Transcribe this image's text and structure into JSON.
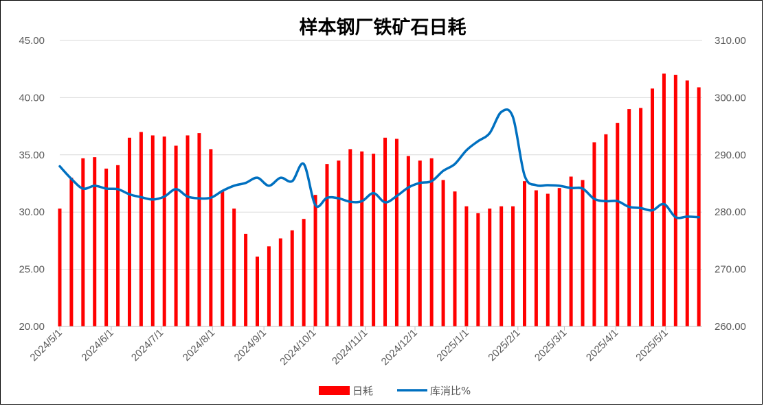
{
  "chart_data": {
    "type": "bar+line",
    "title": "样本钢厂铁矿石日耗",
    "y_left": {
      "ylim": [
        20,
        45
      ],
      "ticks": [
        "45.00",
        "40.00",
        "35.00",
        "30.00",
        "25.00",
        "20.00"
      ]
    },
    "y_right": {
      "ylim": [
        260,
        310
      ],
      "ticks": [
        "310.00",
        "300.00",
        "290.00",
        "280.00",
        "270.00",
        "260.00"
      ]
    },
    "x_axis": {
      "start": "2024-05-01",
      "end": "2025-05-23",
      "ticks": [
        {
          "date": "2024-05-01",
          "label": "2024/5/1"
        },
        {
          "date": "2024-06-01",
          "label": "2024/6/1"
        },
        {
          "date": "2024-07-01",
          "label": "2024/7/1"
        },
        {
          "date": "2024-08-01",
          "label": "2024/8/1"
        },
        {
          "date": "2024-09-01",
          "label": "2024/9/1"
        },
        {
          "date": "2024-10-01",
          "label": "2024/10/1"
        },
        {
          "date": "2024-11-01",
          "label": "2024/11/1"
        },
        {
          "date": "2024-12-01",
          "label": "2024/12/1"
        },
        {
          "date": "2025-01-01",
          "label": "2025/1/1"
        },
        {
          "date": "2025-02-01",
          "label": "2025/2/1"
        },
        {
          "date": "2025-03-01",
          "label": "2025/3/1"
        },
        {
          "date": "2025-04-01",
          "label": "2025/4/1"
        },
        {
          "date": "2025-05-01",
          "label": "2025/5/1"
        }
      ]
    },
    "legend": {
      "position": "bottom",
      "items": [
        "日耗",
        "库消比%"
      ]
    },
    "grid": true,
    "series": [
      {
        "name": "日耗",
        "kind": "bar",
        "axis": "left",
        "color": "#FF0000",
        "x": [
          "2024-05-01",
          "2024-05-08",
          "2024-05-15",
          "2024-05-22",
          "2024-05-29",
          "2024-06-05",
          "2024-06-12",
          "2024-06-19",
          "2024-06-26",
          "2024-07-03",
          "2024-07-10",
          "2024-07-17",
          "2024-07-24",
          "2024-07-31",
          "2024-08-07",
          "2024-08-14",
          "2024-08-21",
          "2024-08-28",
          "2024-09-04",
          "2024-09-11",
          "2024-09-18",
          "2024-09-25",
          "2024-10-02",
          "2024-10-09",
          "2024-10-16",
          "2024-10-23",
          "2024-10-30",
          "2024-11-06",
          "2024-11-13",
          "2024-11-20",
          "2024-11-27",
          "2024-12-04",
          "2024-12-11",
          "2024-12-18",
          "2024-12-25",
          "2025-01-01",
          "2025-01-08",
          "2025-01-15",
          "2025-01-22",
          "2025-01-29",
          "2025-02-05",
          "2025-02-12",
          "2025-02-19",
          "2025-02-26",
          "2025-03-05",
          "2025-03-12",
          "2025-03-19",
          "2025-03-26",
          "2025-04-02",
          "2025-04-09",
          "2025-04-16",
          "2025-04-23",
          "2025-04-30",
          "2025-05-07",
          "2025-05-14",
          "2025-05-21"
        ],
        "values": [
          30.3,
          33.0,
          34.7,
          34.8,
          33.8,
          34.1,
          36.5,
          37.0,
          36.7,
          36.6,
          35.8,
          36.7,
          36.9,
          35.5,
          31.8,
          30.3,
          28.1,
          26.1,
          27.0,
          27.7,
          28.4,
          29.4,
          31.5,
          34.2,
          34.5,
          35.5,
          35.3,
          35.1,
          36.5,
          36.4,
          34.9,
          34.5,
          34.7,
          32.8,
          31.8,
          30.5,
          29.9,
          30.3,
          30.5,
          30.5,
          32.7,
          31.9,
          31.6,
          32.1,
          33.1,
          32.8,
          36.1,
          36.8,
          37.8,
          39.0,
          39.1,
          40.8,
          42.1,
          42.0,
          41.5,
          40.9
        ]
      },
      {
        "name": "库消比%",
        "kind": "line",
        "axis": "right",
        "color": "#0070C0",
        "x": [
          "2024-05-01",
          "2024-05-08",
          "2024-05-15",
          "2024-05-22",
          "2024-05-29",
          "2024-06-05",
          "2024-06-12",
          "2024-06-19",
          "2024-06-26",
          "2024-07-03",
          "2024-07-10",
          "2024-07-17",
          "2024-07-24",
          "2024-07-31",
          "2024-08-07",
          "2024-08-14",
          "2024-08-21",
          "2024-08-28",
          "2024-09-04",
          "2024-09-11",
          "2024-09-18",
          "2024-09-25",
          "2024-10-02",
          "2024-10-09",
          "2024-10-16",
          "2024-10-23",
          "2024-10-30",
          "2024-11-06",
          "2024-11-13",
          "2024-11-20",
          "2024-11-27",
          "2024-12-04",
          "2024-12-11",
          "2024-12-18",
          "2024-12-25",
          "2025-01-01",
          "2025-01-08",
          "2025-01-15",
          "2025-01-22",
          "2025-01-29",
          "2025-02-05",
          "2025-02-12",
          "2025-02-19",
          "2025-02-26",
          "2025-03-05",
          "2025-03-12",
          "2025-03-19",
          "2025-03-26",
          "2025-04-02",
          "2025-04-09",
          "2025-04-16",
          "2025-04-23",
          "2025-04-30",
          "2025-05-07",
          "2025-05-14",
          "2025-05-21"
        ],
        "values": [
          288.0,
          285.8,
          284.1,
          284.6,
          284.1,
          284.0,
          283.1,
          282.6,
          282.2,
          282.7,
          284.0,
          282.7,
          282.4,
          282.5,
          283.7,
          284.6,
          285.1,
          286.0,
          284.6,
          286.0,
          285.4,
          288.4,
          281.2,
          282.5,
          282.4,
          281.8,
          281.9,
          283.3,
          281.7,
          282.8,
          284.3,
          285.1,
          285.4,
          287.2,
          288.4,
          290.8,
          292.4,
          293.8,
          297.5,
          296.6,
          286.4,
          284.7,
          284.7,
          284.6,
          284.2,
          284.1,
          282.3,
          281.9,
          281.9,
          280.9,
          280.7,
          280.3,
          281.4,
          279.1,
          279.2,
          279.1
        ]
      }
    ]
  }
}
